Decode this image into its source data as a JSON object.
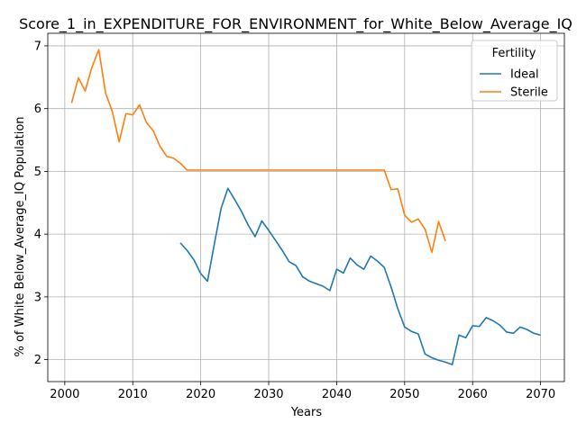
{
  "chart_data": {
    "type": "line",
    "title": "Score_1_in_EXPENDITURE_FOR_ENVIRONMENT_for_White_Below_Average_IQ",
    "xlabel": "Years",
    "ylabel": "% of White Below_Average_IQ Population",
    "xlim": [
      1997.5,
      2073.5
    ],
    "ylim": [
      1.65,
      7.2
    ],
    "xticks": [
      2000,
      2010,
      2020,
      2030,
      2040,
      2050,
      2060,
      2070
    ],
    "yticks": [
      2,
      3,
      4,
      5,
      6,
      7
    ],
    "grid": true,
    "legend": {
      "title": "Fertility",
      "placement": "top-right"
    },
    "series": [
      {
        "name": "Ideal",
        "color": "#1f77b4",
        "x": [
          2017,
          2018,
          2019,
          2020,
          2021,
          2022,
          2023,
          2024,
          2025,
          2026,
          2027,
          2028,
          2029,
          2030,
          2031,
          2032,
          2033,
          2034,
          2035,
          2036,
          2037,
          2038,
          2039,
          2040,
          2041,
          2042,
          2043,
          2044,
          2045,
          2046,
          2047,
          2048,
          2049,
          2050,
          2051,
          2052,
          2053,
          2054,
          2055,
          2056,
          2057,
          2058,
          2059,
          2060,
          2061,
          2062,
          2063,
          2064,
          2065,
          2066,
          2067,
          2068,
          2069,
          2070
        ],
        "y": [
          3.86,
          3.74,
          3.59,
          3.37,
          3.25,
          3.84,
          4.41,
          4.73,
          4.55,
          4.36,
          4.14,
          3.96,
          4.21,
          4.06,
          3.9,
          3.74,
          3.56,
          3.5,
          3.32,
          3.25,
          3.21,
          3.17,
          3.1,
          3.44,
          3.38,
          3.62,
          3.51,
          3.44,
          3.65,
          3.57,
          3.47,
          3.16,
          2.81,
          2.52,
          2.45,
          2.41,
          2.09,
          2.03,
          1.99,
          1.96,
          1.92,
          2.39,
          2.35,
          2.54,
          2.53,
          2.67,
          2.62,
          2.55,
          2.44,
          2.42,
          2.52,
          2.48,
          2.42,
          2.39
        ]
      },
      {
        "name": "Sterile",
        "color": "#ff7f0e",
        "x": [
          2001,
          2002,
          2003,
          2004,
          2005,
          2006,
          2007,
          2008,
          2009,
          2010,
          2011,
          2012,
          2013,
          2014,
          2015,
          2016,
          2017,
          2018,
          2019,
          2020,
          2021,
          2022,
          2023,
          2024,
          2025,
          2026,
          2027,
          2028,
          2029,
          2030,
          2031,
          2032,
          2033,
          2034,
          2035,
          2036,
          2037,
          2038,
          2039,
          2040,
          2041,
          2042,
          2043,
          2044,
          2045,
          2046,
          2047,
          2048,
          2049,
          2050,
          2051,
          2052,
          2053,
          2054,
          2055,
          2056
        ],
        "y": [
          6.09,
          6.49,
          6.28,
          6.66,
          6.94,
          6.25,
          5.95,
          5.47,
          5.92,
          5.9,
          6.06,
          5.78,
          5.65,
          5.4,
          5.24,
          5.21,
          5.13,
          5.02,
          5.02,
          5.02,
          5.02,
          5.02,
          5.02,
          5.02,
          5.02,
          5.02,
          5.02,
          5.02,
          5.02,
          5.02,
          5.02,
          5.02,
          5.02,
          5.02,
          5.02,
          5.02,
          5.02,
          5.02,
          5.02,
          5.02,
          5.02,
          5.02,
          5.02,
          5.02,
          5.02,
          5.02,
          5.02,
          4.71,
          4.72,
          4.3,
          4.19,
          4.24,
          4.08,
          3.71,
          4.2,
          3.89
        ]
      }
    ]
  }
}
